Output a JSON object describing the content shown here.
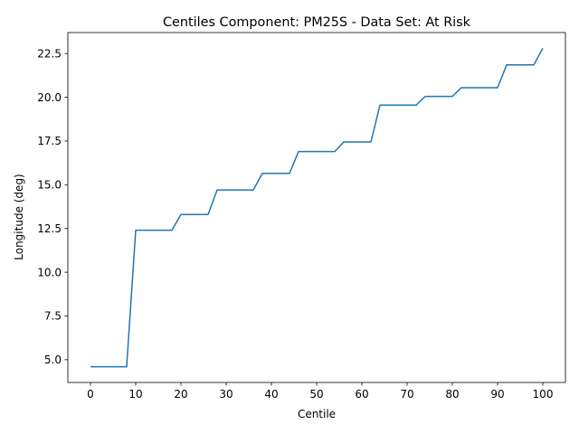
{
  "chart_data": {
    "type": "line",
    "title": "Centiles Component: PM25S - Data Set: At Risk",
    "xlabel": "Centile",
    "ylabel": "Longitude (deg)",
    "xlim": [
      -5,
      105
    ],
    "ylim": [
      3.7,
      23.7
    ],
    "xticks": [
      0,
      10,
      20,
      30,
      40,
      50,
      60,
      70,
      80,
      90,
      100
    ],
    "xtick_labels": [
      "0",
      "10",
      "20",
      "30",
      "40",
      "50",
      "60",
      "70",
      "80",
      "90",
      "100"
    ],
    "yticks": [
      5.0,
      7.5,
      10.0,
      12.5,
      15.0,
      17.5,
      20.0,
      22.5
    ],
    "ytick_labels": [
      "5.0",
      "7.5",
      "10.0",
      "12.5",
      "15.0",
      "17.5",
      "20.0",
      "22.5"
    ],
    "grid": false,
    "line_color": "#1f77b4",
    "series": [
      {
        "x": [
          0,
          2,
          4,
          6,
          8,
          10,
          12,
          14,
          16,
          18,
          20,
          22,
          24,
          26,
          28,
          30,
          32,
          34,
          36,
          38,
          40,
          42,
          44,
          46,
          48,
          50,
          52,
          54,
          56,
          58,
          60,
          62,
          64,
          66,
          68,
          70,
          72,
          74,
          76,
          78,
          80,
          82,
          84,
          86,
          88,
          90,
          92,
          94,
          96,
          98,
          100
        ],
        "values": [
          4.6,
          4.6,
          4.6,
          4.6,
          4.6,
          12.4,
          12.4,
          12.4,
          12.4,
          12.4,
          13.3,
          13.3,
          13.3,
          13.3,
          14.7,
          14.7,
          14.7,
          14.7,
          14.7,
          15.65,
          15.65,
          15.65,
          15.65,
          16.9,
          16.9,
          16.9,
          16.9,
          16.9,
          17.45,
          17.45,
          17.45,
          17.45,
          19.55,
          19.55,
          19.55,
          19.55,
          19.55,
          20.05,
          20.05,
          20.05,
          20.05,
          20.55,
          20.55,
          20.55,
          20.55,
          20.55,
          21.85,
          21.85,
          21.85,
          21.85,
          22.8
        ]
      }
    ]
  }
}
